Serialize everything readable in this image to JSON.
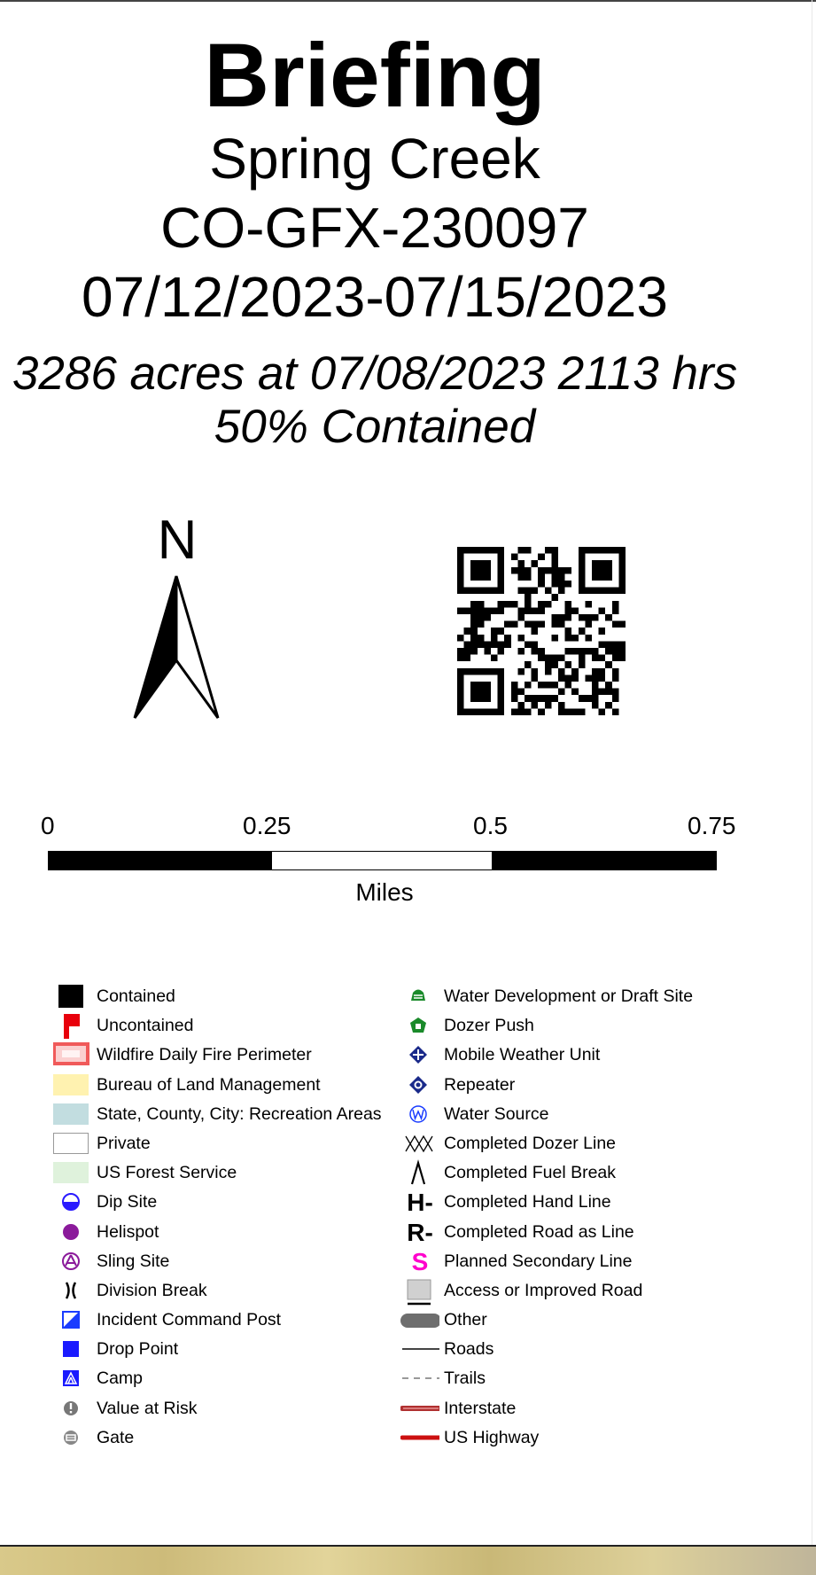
{
  "header": {
    "title": "Briefing",
    "incident_name": "Spring Creek",
    "incident_number": "CO-GFX-230097",
    "date_range": "07/12/2023-07/15/2023",
    "acres_line": "3286 acres at 07/08/2023 2113 hrs",
    "containment": "50% Contained"
  },
  "north_arrow": {
    "label": "N"
  },
  "scale_bar": {
    "ticks": [
      "0",
      "0.25",
      "0.5",
      "0.75"
    ],
    "units": "Miles"
  },
  "legend": {
    "left": [
      {
        "label": "Contained",
        "icon": "contained-square-icon"
      },
      {
        "label": "Uncontained",
        "icon": "uncontained-flag-icon"
      },
      {
        "label": "Wildfire Daily Fire Perimeter",
        "icon": "fire-perimeter-icon"
      },
      {
        "label": "Bureau of Land Management",
        "icon": "blm-fill-icon"
      },
      {
        "label": "State, County, City: Recreation Areas",
        "icon": "recreation-fill-icon"
      },
      {
        "label": "Private",
        "icon": "private-fill-icon"
      },
      {
        "label": "US Forest Service",
        "icon": "usfs-fill-icon"
      },
      {
        "label": "Dip Site",
        "icon": "dip-site-icon"
      },
      {
        "label": "Helispot",
        "icon": "helispot-icon"
      },
      {
        "label": "Sling Site",
        "icon": "sling-site-icon"
      },
      {
        "label": "Division Break",
        "icon": "division-break-icon"
      },
      {
        "label": "Incident Command Post",
        "icon": "icp-icon"
      },
      {
        "label": "Drop Point",
        "icon": "drop-point-icon"
      },
      {
        "label": "Camp",
        "icon": "camp-icon"
      },
      {
        "label": "Value at Risk",
        "icon": "value-at-risk-icon"
      },
      {
        "label": "Gate",
        "icon": "gate-icon"
      }
    ],
    "right": [
      {
        "label": "Water Development or Draft Site",
        "icon": "water-development-icon"
      },
      {
        "label": "Dozer Push",
        "icon": "dozer-push-icon"
      },
      {
        "label": "Mobile Weather Unit",
        "icon": "mobile-weather-icon"
      },
      {
        "label": "Repeater",
        "icon": "repeater-icon"
      },
      {
        "label": "Water Source",
        "icon": "water-source-icon"
      },
      {
        "label": "Completed Dozer Line",
        "icon": "dozer-line-icon"
      },
      {
        "label": "Completed Fuel Break",
        "icon": "fuel-break-icon"
      },
      {
        "label": "Completed Hand Line",
        "icon": "hand-line-icon",
        "glyph": "H-"
      },
      {
        "label": "Completed Road as Line",
        "icon": "road-as-line-icon",
        "glyph": "R-"
      },
      {
        "label": "Planned Secondary Line",
        "icon": "secondary-line-icon",
        "glyph": "S"
      },
      {
        "label": "Access or Improved Road",
        "icon": "access-road-icon"
      },
      {
        "label": "Other",
        "icon": "other-line-icon"
      },
      {
        "label": "Roads",
        "icon": "roads-line-icon"
      },
      {
        "label": "Trails",
        "icon": "trails-line-icon"
      },
      {
        "label": "Interstate",
        "icon": "interstate-line-icon"
      },
      {
        "label": "US Highway",
        "icon": "us-highway-line-icon"
      }
    ]
  },
  "colors": {
    "uncontained_red": "#e8000b",
    "perimeter_red": "#f05a5a",
    "blm_yellow": "#fff2b0",
    "recreation_blue": "#c2dde0",
    "usfs_green": "#dff2dc",
    "helispot_purple": "#8b1a9b",
    "icp_blue": "#1a3cff",
    "water_green": "#1a8a2a",
    "repeater_navy": "#1a2a8a",
    "secondary_magenta": "#ff00cc",
    "interstate_red": "#b03030",
    "highway_red": "#cc1010"
  }
}
